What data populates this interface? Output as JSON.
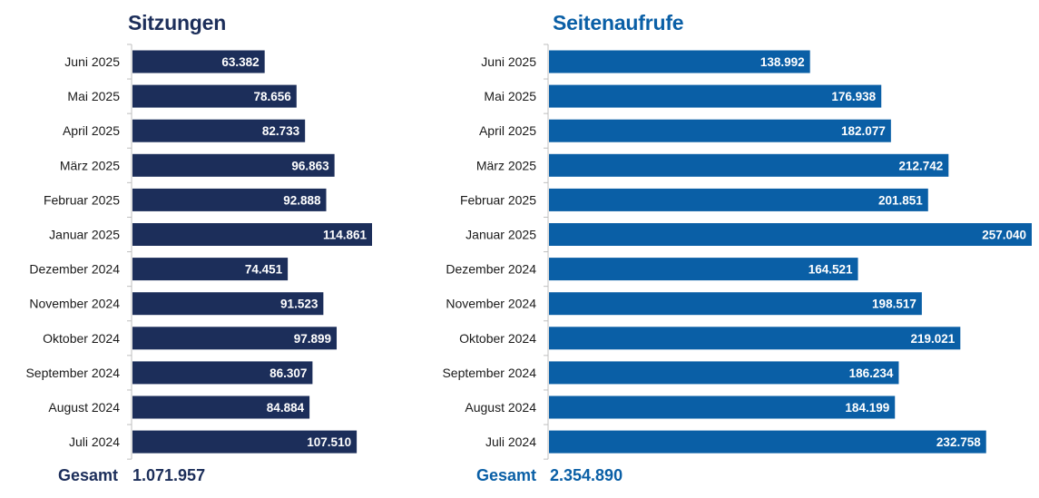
{
  "chart_data": [
    {
      "type": "bar",
      "orientation": "horizontal",
      "title": "Sitzungen",
      "categories": [
        "Juni 2025",
        "Mai 2025",
        "April 2025",
        "März 2025",
        "Februar 2025",
        "Januar 2025",
        "Dezember 2024",
        "November 2024",
        "Oktober 2024",
        "September 2024",
        "August 2024",
        "Juli 2024"
      ],
      "values": [
        63382,
        78656,
        82733,
        96863,
        92888,
        114861,
        74451,
        91523,
        97899,
        86307,
        84884,
        107510
      ],
      "value_labels": [
        "63.382",
        "78.656",
        "82.733",
        "96.863",
        "92.888",
        "114.861",
        "74.451",
        "91.523",
        "97.899",
        "86.307",
        "84.884",
        "107.510"
      ],
      "xlim": [
        0,
        114861
      ],
      "grid": false,
      "total_label": "Gesamt",
      "total_value": "1.071.957",
      "color": "#1c2e5a"
    },
    {
      "type": "bar",
      "orientation": "horizontal",
      "title": "Seitenaufrufe",
      "categories": [
        "Juni 2025",
        "Mai 2025",
        "April 2025",
        "März 2025",
        "Februar 2025",
        "Januar 2025",
        "Dezember 2024",
        "November 2024",
        "Oktober 2024",
        "September 2024",
        "August 2024",
        "Juli 2024"
      ],
      "values": [
        138992,
        176938,
        182077,
        212742,
        201851,
        257040,
        164521,
        198517,
        219021,
        186234,
        184199,
        232758
      ],
      "value_labels": [
        "138.992",
        "176.938",
        "182.077",
        "212.742",
        "201.851",
        "257.040",
        "164.521",
        "198.517",
        "219.021",
        "186.234",
        "184.199",
        "232.758"
      ],
      "xlim": [
        0,
        257040
      ],
      "grid": false,
      "total_label": "Gesamt",
      "total_value": "2.354.890",
      "color": "#0a5fa6"
    }
  ]
}
